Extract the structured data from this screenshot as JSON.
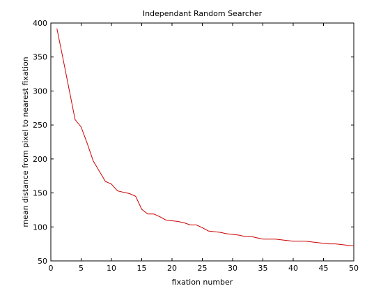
{
  "chart_data": {
    "type": "line",
    "title": "Independant Random Searcher",
    "xlabel": "fixation number",
    "ylabel": "mean distance from pixel to nearest fixation",
    "xlim": [
      0,
      50
    ],
    "ylim": [
      50,
      400
    ],
    "xticks": [
      0,
      5,
      10,
      15,
      20,
      25,
      30,
      35,
      40,
      45,
      50
    ],
    "yticks": [
      50,
      100,
      150,
      200,
      250,
      300,
      350,
      400
    ],
    "grid": false,
    "legend": "none",
    "series": [
      {
        "color": "#cc0000",
        "x": [
          1,
          2,
          3,
          4,
          5,
          6,
          7,
          8,
          9,
          10,
          11,
          12,
          13,
          14,
          15,
          16,
          17,
          18,
          19,
          20,
          21,
          22,
          23,
          24,
          25,
          26,
          27,
          28,
          29,
          30,
          31,
          32,
          33,
          34,
          35,
          36,
          37,
          38,
          39,
          40,
          41,
          42,
          43,
          44,
          45,
          46,
          47,
          48,
          49,
          50
        ],
        "y": [
          392,
          348,
          303,
          258,
          247,
          223,
          197,
          182,
          167,
          163,
          153,
          151,
          149,
          145,
          126,
          119,
          119,
          115,
          110,
          109,
          108,
          106,
          103,
          103,
          99,
          94,
          93,
          92,
          90,
          89,
          88,
          86,
          86,
          84,
          82,
          82,
          82,
          81,
          80,
          79,
          79,
          79,
          78,
          77,
          76,
          75,
          75,
          74,
          73,
          72
        ]
      }
    ]
  }
}
